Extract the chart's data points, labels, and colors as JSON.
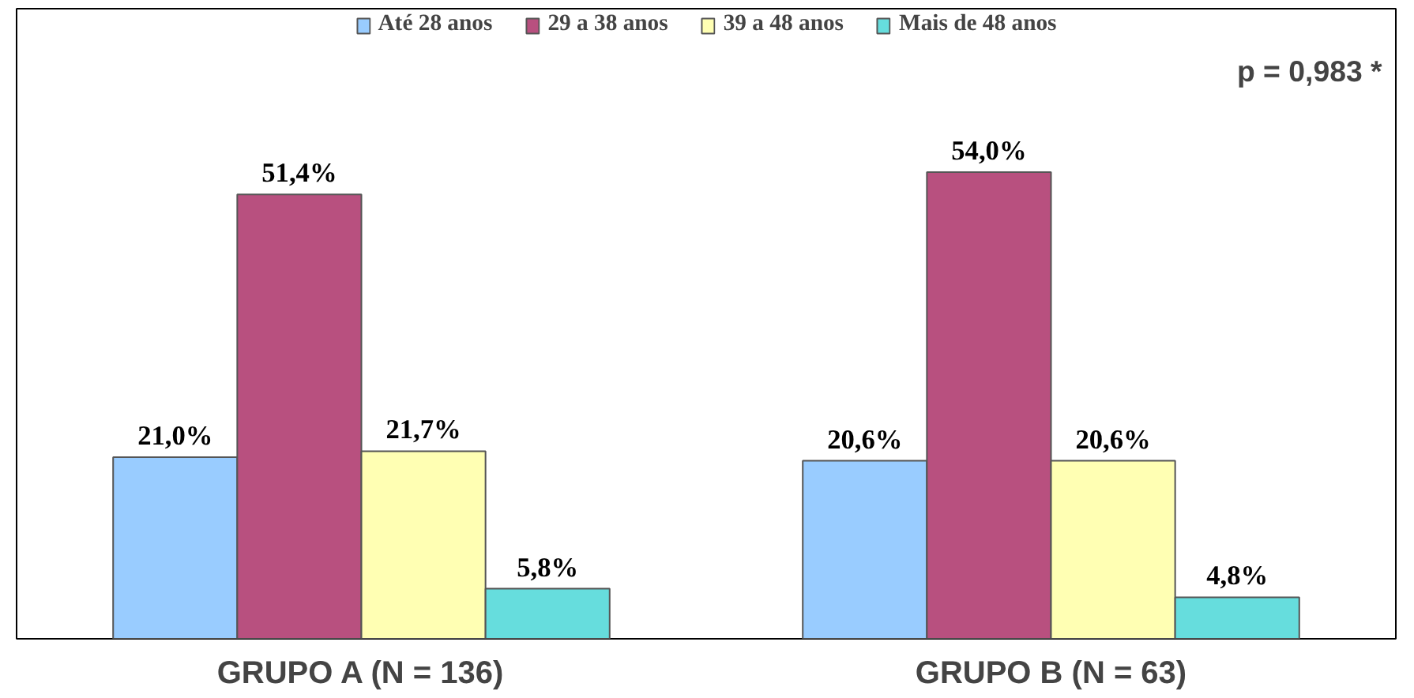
{
  "chart_data": {
    "type": "bar",
    "categories": [
      "GRUPO A (N = 136)",
      "GRUPO B (N = 63)"
    ],
    "series": [
      {
        "name": "Até 28 anos",
        "color": "#99ccff",
        "values": [
          21.0,
          20.6
        ],
        "value_labels": [
          "21,0%",
          "20,6%"
        ]
      },
      {
        "name": "29 a 38 anos",
        "color": "#b8507f",
        "values": [
          51.4,
          54.0
        ],
        "value_labels": [
          "51,4%",
          "54,0%"
        ]
      },
      {
        "name": "39 a 48 anos",
        "color": "#ffffb3",
        "values": [
          21.7,
          20.6
        ],
        "value_labels": [
          "21,7%",
          "20,6%"
        ]
      },
      {
        "name": "Mais de 48 anos",
        "color": "#66dddd",
        "values": [
          5.8,
          4.8
        ],
        "value_labels": [
          "5,8%",
          "4,8%"
        ]
      }
    ],
    "annotations": [
      "p = 0,983 *"
    ],
    "legend": "top",
    "grid": false
  }
}
